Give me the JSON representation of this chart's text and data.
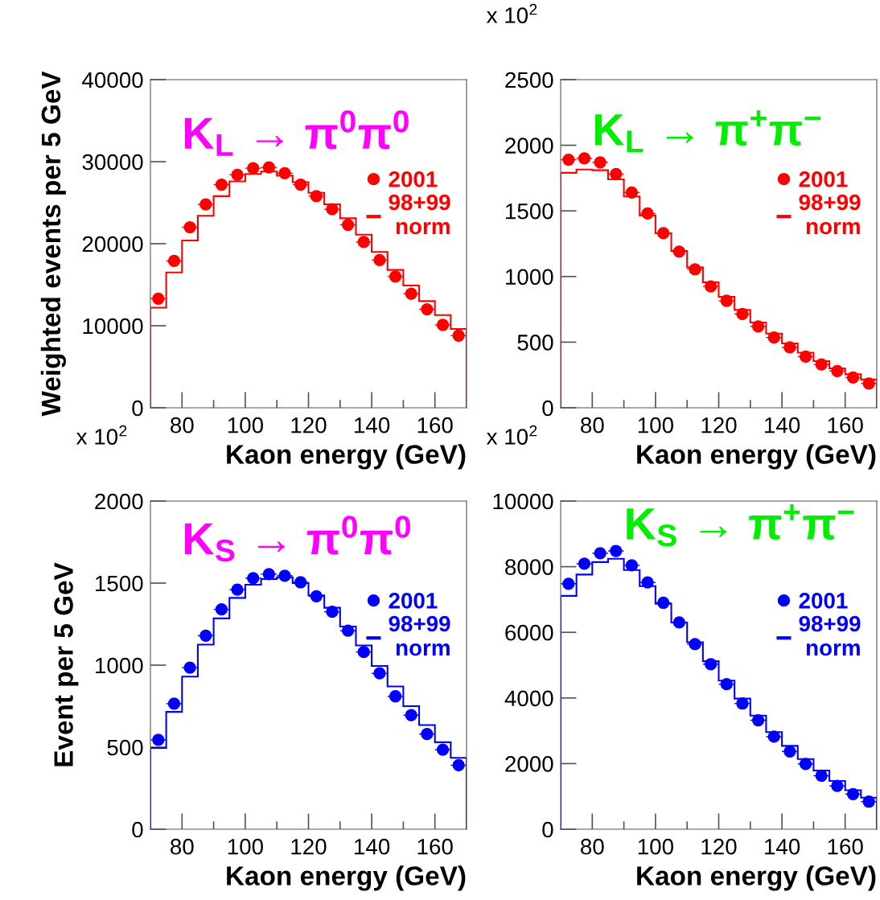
{
  "chart_data": [
    {
      "type": "scatter",
      "title": "K$_{L}$ → π$^{0}$π$^{0}$",
      "xlabel": "Kaon energy (GeV)",
      "ylabel": "Weighted events per 5 GeV",
      "xlim": [
        70,
        170
      ],
      "xticks": [
        80,
        {
          "value": 90,
          "label": null
        },
        100,
        {
          "value": 110,
          "label": null
        },
        120,
        {
          "value": 130,
          "label": null
        },
        140,
        {
          "value": 150,
          "label": null
        },
        160
      ],
      "ylim": [
        0,
        40000
      ],
      "yticks": [
        0,
        10000,
        20000,
        30000,
        40000
      ],
      "legend": "right",
      "marker": "circle",
      "series": [
        {
          "name": "2001",
          "color": "#ff0000",
          "x": [
            72.5,
            77.5,
            82.5,
            87.5,
            92.5,
            97.5,
            102.5,
            107.5,
            112.5,
            117.5,
            122.5,
            127.5,
            132.5,
            137.5,
            142.5,
            147.5,
            152.5,
            157.5,
            162.5,
            167.5
          ],
          "values": [
            13300,
            17900,
            22000,
            24800,
            27200,
            28400,
            29200,
            29300,
            28600,
            27200,
            25800,
            24200,
            22300,
            20200,
            18000,
            16000,
            13900,
            12000,
            10100,
            8800
          ],
          "xerrors": [
            2.5,
            2.5,
            2.5,
            2.5,
            2.5,
            2.5,
            2.5,
            2.5,
            2.5,
            2.5,
            2.5,
            2.5,
            2.5,
            2.5,
            2.5,
            2.5,
            2.5,
            2.5,
            2.5,
            2.5
          ]
        },
        {
          "name": "98+99 norm",
          "type": "histogram",
          "color": "#ff0000",
          "bins": [
            70,
            75,
            80,
            85,
            90,
            95,
            100,
            105,
            110,
            115,
            120,
            125,
            130,
            135,
            140,
            145,
            150,
            155,
            160,
            165,
            170
          ],
          "values": [
            12200,
            16500,
            20400,
            23400,
            25800,
            27600,
            28500,
            28800,
            28300,
            27500,
            26200,
            24800,
            23100,
            21100,
            19000,
            16800,
            14900,
            13000,
            11300,
            9600
          ]
        }
      ]
    },
    {
      "type": "scatter",
      "title": "K$_{L}$ → π$^{+}$π$^{−}$",
      "xlabel": "Kaon energy (GeV)",
      "annotations": [
        "x 10$^{2}$"
      ],
      "xlim": [
        70,
        170
      ],
      "xticks": [
        80,
        {
          "value": 90,
          "label": null
        },
        100,
        {
          "value": 110,
          "label": null
        },
        120,
        {
          "value": 130,
          "label": null
        },
        140,
        {
          "value": 150,
          "label": null
        },
        160
      ],
      "ylim": [
        0,
        2500
      ],
      "yticks": [
        0,
        500,
        1000,
        1500,
        2000,
        2500
      ],
      "legend": "right",
      "marker": "circle",
      "series": [
        {
          "name": "2001",
          "color": "#ff0000",
          "x": [
            72.5,
            77.5,
            82.5,
            87.5,
            92.5,
            97.5,
            102.5,
            107.5,
            112.5,
            117.5,
            122.5,
            127.5,
            132.5,
            137.5,
            142.5,
            147.5,
            152.5,
            157.5,
            162.5,
            167.5
          ],
          "values": [
            1890,
            1900,
            1870,
            1780,
            1640,
            1480,
            1330,
            1190,
            1055,
            925,
            815,
            715,
            620,
            535,
            460,
            390,
            330,
            280,
            230,
            185
          ],
          "xerrors": [
            2.5,
            2.5,
            2.5,
            2.5,
            2.5,
            2.5,
            2.5,
            2.5,
            2.5,
            2.5,
            2.5,
            2.5,
            2.5,
            2.5,
            2.5,
            2.5,
            2.5,
            2.5,
            2.5,
            2.5
          ]
        },
        {
          "name": "98+99 norm",
          "type": "histogram",
          "color": "#ff0000",
          "bins": [
            70,
            75,
            80,
            85,
            90,
            95,
            100,
            105,
            110,
            115,
            120,
            125,
            130,
            135,
            140,
            145,
            150,
            155,
            160,
            165,
            170
          ],
          "values": [
            1790,
            1815,
            1810,
            1740,
            1610,
            1465,
            1330,
            1195,
            1070,
            955,
            845,
            745,
            650,
            565,
            490,
            420,
            355,
            300,
            255,
            215
          ]
        }
      ]
    },
    {
      "type": "scatter",
      "title": "K$_{S}$ → π$^{0}$π$^{0}$",
      "xlabel": "Kaon energy (GeV)",
      "ylabel": "Event per 5 GeV",
      "annotations": [
        "x 10$^{2}$"
      ],
      "xlim": [
        70,
        170
      ],
      "xticks": [
        80,
        {
          "value": 90,
          "label": null
        },
        100,
        {
          "value": 110,
          "label": null
        },
        120,
        {
          "value": 130,
          "label": null
        },
        140,
        {
          "value": 150,
          "label": null
        },
        160
      ],
      "ylim": [
        0,
        2000
      ],
      "yticks": [
        0,
        500,
        1000,
        1500,
        2000
      ],
      "legend": "right",
      "marker": "circle",
      "series": [
        {
          "name": "2001",
          "color": "#0000ff",
          "x": [
            72.5,
            77.5,
            82.5,
            87.5,
            92.5,
            97.5,
            102.5,
            107.5,
            112.5,
            117.5,
            122.5,
            127.5,
            132.5,
            137.5,
            142.5,
            147.5,
            152.5,
            157.5,
            162.5,
            167.5
          ],
          "values": [
            545,
            765,
            985,
            1180,
            1340,
            1460,
            1530,
            1555,
            1545,
            1505,
            1420,
            1325,
            1210,
            1080,
            950,
            810,
            695,
            580,
            485,
            390
          ],
          "xerrors": [
            2.5,
            2.5,
            2.5,
            2.5,
            2.5,
            2.5,
            2.5,
            2.5,
            2.5,
            2.5,
            2.5,
            2.5,
            2.5,
            2.5,
            2.5,
            2.5,
            2.5,
            2.5,
            2.5,
            2.5
          ]
        },
        {
          "name": "98+99 norm",
          "type": "histogram",
          "color": "#0000ff",
          "bins": [
            70,
            75,
            80,
            85,
            90,
            95,
            100,
            105,
            110,
            115,
            120,
            125,
            130,
            135,
            140,
            145,
            150,
            155,
            160,
            165,
            170
          ],
          "values": [
            495,
            715,
            930,
            1125,
            1285,
            1410,
            1490,
            1525,
            1535,
            1500,
            1425,
            1350,
            1235,
            1120,
            995,
            870,
            750,
            635,
            530,
            435
          ]
        }
      ]
    },
    {
      "type": "scatter",
      "title": "K$_{S}$ → π$^{+}$π$^{−}$",
      "xlabel": "Kaon energy (GeV)",
      "annotations": [
        "x 10$^{2}$"
      ],
      "xlim": [
        70,
        170
      ],
      "xticks": [
        80,
        {
          "value": 90,
          "label": null
        },
        100,
        {
          "value": 110,
          "label": null
        },
        120,
        {
          "value": 130,
          "label": null
        },
        140,
        {
          "value": 150,
          "label": null
        },
        160
      ],
      "ylim": [
        0,
        10000
      ],
      "yticks": [
        0,
        2000,
        4000,
        6000,
        8000,
        10000
      ],
      "legend": "right",
      "marker": "circle",
      "series": [
        {
          "name": "2001",
          "color": "#0000ff",
          "x": [
            72.5,
            77.5,
            82.5,
            87.5,
            92.5,
            97.5,
            102.5,
            107.5,
            112.5,
            117.5,
            122.5,
            127.5,
            132.5,
            137.5,
            142.5,
            147.5,
            152.5,
            157.5,
            162.5,
            167.5
          ],
          "values": [
            7480,
            8090,
            8410,
            8480,
            8040,
            7520,
            6900,
            6300,
            5640,
            5030,
            4420,
            3830,
            3320,
            2820,
            2370,
            1990,
            1630,
            1320,
            1070,
            840
          ],
          "xerrors": [
            2.5,
            2.5,
            2.5,
            2.5,
            2.5,
            2.5,
            2.5,
            2.5,
            2.5,
            2.5,
            2.5,
            2.5,
            2.5,
            2.5,
            2.5,
            2.5,
            2.5,
            2.5,
            2.5,
            2.5
          ]
        },
        {
          "name": "98+99 norm",
          "type": "histogram",
          "color": "#0000ff",
          "bins": [
            70,
            75,
            80,
            85,
            90,
            95,
            100,
            105,
            110,
            115,
            120,
            125,
            130,
            135,
            140,
            145,
            150,
            155,
            160,
            165,
            170
          ],
          "values": [
            7110,
            7760,
            8140,
            8240,
            7900,
            7410,
            6870,
            6300,
            5700,
            5120,
            4530,
            3980,
            3460,
            2960,
            2540,
            2140,
            1790,
            1470,
            1190,
            960
          ]
        }
      ]
    }
  ]
}
